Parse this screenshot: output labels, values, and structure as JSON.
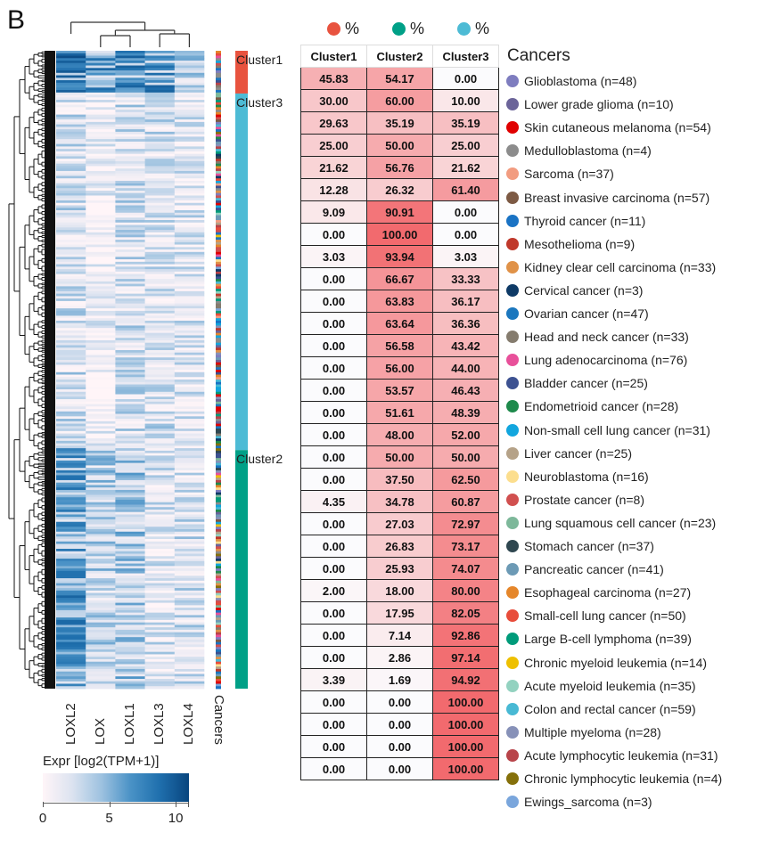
{
  "panel_letter": "B",
  "chart_data": [
    {
      "type": "heatmap",
      "title": "",
      "columns": [
        "LOXL2",
        "LOX",
        "LOXL1",
        "LOXL3",
        "LOXL4"
      ],
      "row_annotation_label": "Cancers",
      "clusters": [
        {
          "name": "Cluster1",
          "color": "#E8533F",
          "fraction_of_rows": 0.067
        },
        {
          "name": "Cluster3",
          "color": "#4DBBD5",
          "fraction_of_rows": 0.559
        },
        {
          "name": "Cluster2",
          "color": "#00A087",
          "fraction_of_rows": 0.374
        }
      ],
      "column_mean_expression_by_cluster": {
        "Cluster1": [
          8.5,
          7.0,
          7.5,
          7.0,
          3.5
        ],
        "Cluster3": [
          2.5,
          1.0,
          2.5,
          2.5,
          2.0
        ],
        "Cluster2": [
          7.0,
          3.5,
          4.0,
          2.0,
          2.5
        ]
      },
      "colorbar": {
        "title": "Expr [log2(TPM+1)]",
        "range": [
          0,
          11
        ],
        "ticks": [
          "0",
          "5",
          "10"
        ],
        "tick_values": [
          0,
          5,
          10
        ],
        "low_color": "#FFF5F8",
        "high_color": "#08457E"
      }
    },
    {
      "type": "table",
      "title": "",
      "column_legend": [
        {
          "label": "%",
          "color": "#E8533F"
        },
        {
          "label": "%",
          "color": "#00A087"
        },
        {
          "label": "%",
          "color": "#4DBBD5"
        }
      ],
      "columns": [
        "Cluster1",
        "Cluster2",
        "Cluster3"
      ],
      "legend_title": "Cancers",
      "rows": [
        {
          "cancer": "Glioblastoma (n=48)",
          "color": "#7E7DBF",
          "values": [
            "45.83",
            "54.17",
            "0.00"
          ]
        },
        {
          "cancer": "Lower grade glioma (n=10)",
          "color": "#6B6499",
          "values": [
            "30.00",
            "60.00",
            "10.00"
          ]
        },
        {
          "cancer": "Skin cutaneous melanoma (n=54)",
          "color": "#E00000",
          "values": [
            "29.63",
            "35.19",
            "35.19"
          ]
        },
        {
          "cancer": "Medulloblastoma (n=4)",
          "color": "#8C8C8C",
          "values": [
            "25.00",
            "50.00",
            "25.00"
          ]
        },
        {
          "cancer": "Sarcoma (n=37)",
          "color": "#F29C80",
          "values": [
            "21.62",
            "56.76",
            "21.62"
          ]
        },
        {
          "cancer": "Breast invasive carcinoma (n=57)",
          "color": "#7D5A44",
          "values": [
            "12.28",
            "26.32",
            "61.40"
          ]
        },
        {
          "cancer": "Thyroid cancer (n=11)",
          "color": "#1A73C4",
          "values": [
            "9.09",
            "90.91",
            "0.00"
          ]
        },
        {
          "cancer": "Mesothelioma (n=9)",
          "color": "#C0392B",
          "values": [
            "0.00",
            "100.00",
            "0.00"
          ]
        },
        {
          "cancer": "Kidney clear cell carcinoma (n=33)",
          "color": "#E09248",
          "values": [
            "3.03",
            "93.94",
            "3.03"
          ]
        },
        {
          "cancer": "Cervical cancer (n=3)",
          "color": "#0E3A66",
          "values": [
            "0.00",
            "66.67",
            "33.33"
          ]
        },
        {
          "cancer": "Ovarian cancer (n=47)",
          "color": "#1B77BE",
          "values": [
            "0.00",
            "63.83",
            "36.17"
          ]
        },
        {
          "cancer": "Head and neck cancer (n=33)",
          "color": "#857C6E",
          "values": [
            "0.00",
            "63.64",
            "36.36"
          ]
        },
        {
          "cancer": "Lung adenocarcinoma (n=76)",
          "color": "#E8509A",
          "values": [
            "0.00",
            "56.58",
            "43.42"
          ]
        },
        {
          "cancer": "Bladder cancer (n=25)",
          "color": "#3D5291",
          "values": [
            "0.00",
            "56.00",
            "44.00"
          ]
        },
        {
          "cancer": "Endometrioid cancer (n=28)",
          "color": "#1E8A4C",
          "values": [
            "0.00",
            "53.57",
            "46.43"
          ]
        },
        {
          "cancer": "Non-small cell lung cancer (n=31)",
          "color": "#12A6DE",
          "values": [
            "0.00",
            "51.61",
            "48.39"
          ]
        },
        {
          "cancer": "Liver cancer (n=25)",
          "color": "#B5A288",
          "values": [
            "0.00",
            "48.00",
            "52.00"
          ]
        },
        {
          "cancer": "Neuroblastoma (n=16)",
          "color": "#FCDE8E",
          "values": [
            "0.00",
            "50.00",
            "50.00"
          ]
        },
        {
          "cancer": "Prostate cancer (n=8)",
          "color": "#D1504F",
          "values": [
            "0.00",
            "37.50",
            "62.50"
          ]
        },
        {
          "cancer": "Lung squamous cell cancer (n=23)",
          "color": "#7DB89A",
          "values": [
            "4.35",
            "34.78",
            "60.87"
          ]
        },
        {
          "cancer": "Stomach cancer (n=37)",
          "color": "#2F4750",
          "values": [
            "0.00",
            "27.03",
            "72.97"
          ]
        },
        {
          "cancer": "Pancreatic cancer (n=41)",
          "color": "#6C9AB5",
          "values": [
            "0.00",
            "26.83",
            "73.17"
          ]
        },
        {
          "cancer": "Esophageal carcinoma (n=27)",
          "color": "#E5862A",
          "values": [
            "0.00",
            "25.93",
            "74.07"
          ]
        },
        {
          "cancer": "Small-cell lung cancer (n=50)",
          "color": "#E84C3A",
          "values": [
            "2.00",
            "18.00",
            "80.00"
          ]
        },
        {
          "cancer": "Large B-cell lymphoma (n=39)",
          "color": "#009B7A",
          "values": [
            "0.00",
            "17.95",
            "82.05"
          ]
        },
        {
          "cancer": "Chronic myeloid leukemia (n=14)",
          "color": "#EEC000",
          "values": [
            "0.00",
            "7.14",
            "92.86"
          ]
        },
        {
          "cancer": "Acute myeloid leukemia (n=35)",
          "color": "#93D2C0",
          "values": [
            "0.00",
            "2.86",
            "97.14"
          ]
        },
        {
          "cancer": "Colon and rectal cancer (n=59)",
          "color": "#48B9D4",
          "values": [
            "3.39",
            "1.69",
            "94.92"
          ]
        },
        {
          "cancer": "Multiple myeloma (n=28)",
          "color": "#8791B8",
          "values": [
            "0.00",
            "0.00",
            "100.00"
          ]
        },
        {
          "cancer": "Acute lymphocytic leukemia (n=31)",
          "color": "#B8444A",
          "values": [
            "0.00",
            "0.00",
            "100.00"
          ]
        },
        {
          "cancer": "Chronic lymphocytic leukemia (n=4)",
          "color": "#85700A",
          "values": [
            "0.00",
            "0.00",
            "100.00"
          ]
        },
        {
          "cancer": "Ewings_sarcoma (n=3)",
          "color": "#7AA6DC",
          "values": [
            "0.00",
            "0.00",
            "100.00"
          ]
        }
      ],
      "cell_color_scale": {
        "low": "#FFFFFF",
        "high": "#F26A6E",
        "range": [
          0,
          100
        ]
      }
    }
  ]
}
